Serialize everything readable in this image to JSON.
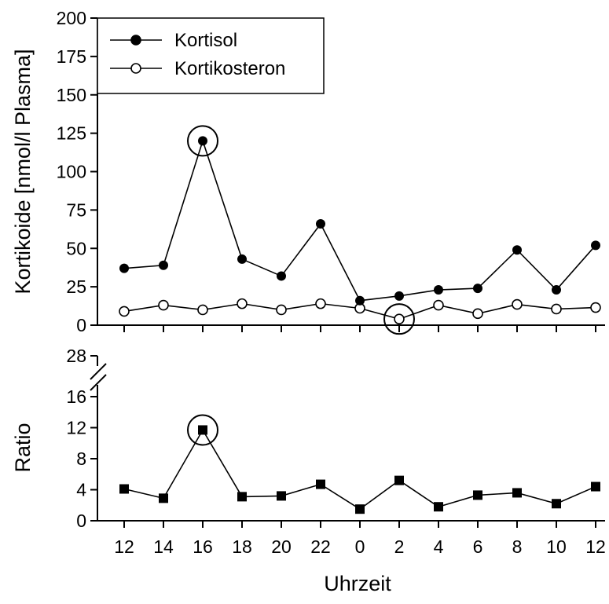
{
  "chart_data": {
    "type": "line",
    "x_label": "Uhrzeit",
    "x_ticks": [
      "12",
      "14",
      "16",
      "18",
      "20",
      "22",
      "0",
      "2",
      "4",
      "6",
      "8",
      "10",
      "12"
    ],
    "panels": [
      {
        "id": "top",
        "y_label": "Kortikoide [nmol/l Plasma]",
        "ylim": [
          0,
          200
        ],
        "y_ticks": [
          0,
          25,
          50,
          75,
          100,
          125,
          150,
          175,
          200
        ],
        "legend_position": "top-left",
        "series": [
          {
            "name": "Kortisol",
            "marker": "filled-circle",
            "values": [
              37,
              39,
              120,
              43,
              32,
              66,
              16,
              19,
              23,
              24,
              49,
              23,
              52
            ]
          },
          {
            "name": "Kortikosteron",
            "marker": "open-circle",
            "values": [
              9,
              13,
              10,
              14,
              10,
              14,
              11,
              4,
              13,
              7.5,
              13.5,
              10.5,
              11.5
            ]
          }
        ],
        "highlighted_points": [
          {
            "series": "Kortisol",
            "x": "16"
          },
          {
            "series": "Kortikosteron",
            "x": "2"
          }
        ]
      },
      {
        "id": "bottom",
        "y_label": "Ratio",
        "ylim": [
          0,
          16
        ],
        "y_ticks": [
          0,
          4,
          8,
          12,
          16
        ],
        "axis_break": true,
        "break_tick": 28,
        "series": [
          {
            "marker": "filled-square",
            "values": [
              4.1,
              2.9,
              11.7,
              3.1,
              3.2,
              4.7,
              1.5,
              5.2,
              1.8,
              3.3,
              3.6,
              2.2,
              4.4
            ]
          }
        ],
        "highlighted_points": [
          {
            "x": "16"
          }
        ]
      }
    ]
  }
}
